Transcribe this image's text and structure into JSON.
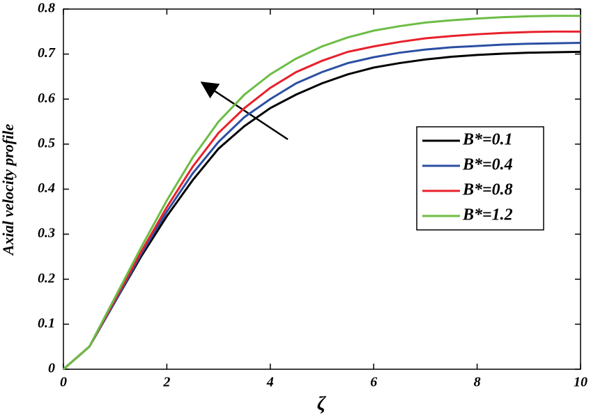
{
  "chart_data": {
    "type": "line",
    "xlabel": "ζ",
    "ylabel": "Axial velocity profile",
    "x": [
      0,
      0.5,
      1,
      1.5,
      2,
      2.5,
      3,
      3.5,
      4,
      4.5,
      5,
      5.5,
      6,
      6.5,
      7,
      7.5,
      8,
      8.5,
      9,
      9.5,
      10
    ],
    "series": [
      {
        "name": "B*=0.1",
        "color": "#000000",
        "values": [
          0,
          0.05,
          0.15,
          0.25,
          0.34,
          0.42,
          0.49,
          0.54,
          0.58,
          0.61,
          0.635,
          0.655,
          0.67,
          0.68,
          0.688,
          0.694,
          0.698,
          0.701,
          0.703,
          0.704,
          0.705
        ]
      },
      {
        "name": "B*=0.4",
        "color": "#2c4fa3",
        "values": [
          0,
          0.05,
          0.15,
          0.255,
          0.35,
          0.435,
          0.505,
          0.56,
          0.6,
          0.635,
          0.66,
          0.68,
          0.693,
          0.703,
          0.71,
          0.715,
          0.718,
          0.721,
          0.723,
          0.724,
          0.725
        ]
      },
      {
        "name": "B*=0.8",
        "color": "#e8202a",
        "values": [
          0,
          0.05,
          0.155,
          0.26,
          0.36,
          0.45,
          0.525,
          0.58,
          0.625,
          0.66,
          0.685,
          0.705,
          0.717,
          0.727,
          0.735,
          0.74,
          0.744,
          0.747,
          0.749,
          0.75,
          0.75
        ]
      },
      {
        "name": "B*=1.2",
        "color": "#6cbd45",
        "values": [
          0,
          0.05,
          0.16,
          0.27,
          0.375,
          0.47,
          0.55,
          0.61,
          0.655,
          0.69,
          0.717,
          0.737,
          0.752,
          0.762,
          0.77,
          0.775,
          0.779,
          0.782,
          0.784,
          0.785,
          0.785
        ]
      }
    ],
    "xlim": [
      0,
      10
    ],
    "xticks": [
      0,
      2,
      4,
      6,
      8,
      10
    ],
    "ylim": [
      0,
      0.8
    ],
    "yticks": [
      0,
      0.1,
      0.2,
      0.3,
      0.4,
      0.5,
      0.6,
      0.7,
      0.8
    ],
    "grid": false,
    "legend": "right"
  }
}
